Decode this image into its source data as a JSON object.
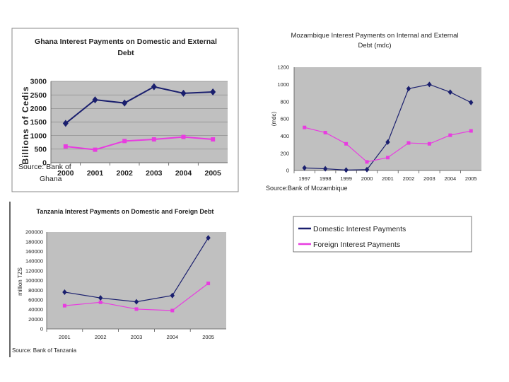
{
  "colors": {
    "domestic": "#1a1f6e",
    "foreign": "#e83ce0",
    "plot_bg": "#c0c0c0",
    "grid": "#888888"
  },
  "chart_data": [
    {
      "type": "line",
      "title_lines": [
        "Ghana Interest Payments on Domestic and External",
        "Debt"
      ],
      "ylabel": "Billions of Cedis",
      "categories": [
        "2000",
        "2001",
        "2002",
        "2003",
        "2004",
        "2005"
      ],
      "yticks": [
        "0",
        "500",
        "1000",
        "1500",
        "2000",
        "2500",
        "3000"
      ],
      "ylim": [
        0,
        3000
      ],
      "grid": true,
      "series": [
        {
          "name": "Domestic",
          "values": [
            1450,
            2320,
            2200,
            2800,
            2560,
            2610
          ]
        },
        {
          "name": "Foreign",
          "values": [
            600,
            480,
            800,
            860,
            950,
            860
          ]
        }
      ],
      "source_lines": [
        "Source: Bank of",
        "Ghana"
      ]
    },
    {
      "type": "line",
      "title_lines": [
        "Mozambique Interest Payments on Internal and External",
        "Debt (mdc)"
      ],
      "ylabel": "(mdc)",
      "categories": [
        "1997",
        "1998",
        "1999",
        "2000",
        "2001",
        "2002",
        "2003",
        "2004",
        "2005"
      ],
      "yticks": [
        "0",
        "200",
        "400",
        "600",
        "800",
        "1000",
        "1200"
      ],
      "ylim": [
        0,
        1200
      ],
      "grid": false,
      "series": [
        {
          "name": "Domestic",
          "values": [
            30,
            20,
            5,
            10,
            330,
            950,
            1000,
            910,
            790
          ]
        },
        {
          "name": "Foreign",
          "values": [
            500,
            440,
            310,
            100,
            150,
            320,
            310,
            410,
            460
          ]
        }
      ],
      "source_lines": [
        "Source:Bank of Mozambique"
      ]
    },
    {
      "type": "line",
      "title_lines": [
        "Tanzania Interest Payments on Domestic and Foreign Debt"
      ],
      "ylabel": "million TZS",
      "categories": [
        "2001",
        "2002",
        "2003",
        "2004",
        "2005"
      ],
      "yticks": [
        "0",
        "20000",
        "40000",
        "60000",
        "80000",
        "100000",
        "120000",
        "140000",
        "160000",
        "180000",
        "200000"
      ],
      "ylim": [
        0,
        200000
      ],
      "grid": false,
      "series": [
        {
          "name": "Domestic",
          "values": [
            76000,
            64000,
            56000,
            69000,
            188000
          ]
        },
        {
          "name": "Foreign",
          "values": [
            48000,
            55000,
            41000,
            38000,
            94000
          ]
        }
      ],
      "source_lines": [
        "Source: Bank of Tanzania"
      ]
    }
  ],
  "legend": {
    "domestic_label": "Domestic Interest Payments",
    "foreign_label": "Foreign Interest Payments"
  }
}
